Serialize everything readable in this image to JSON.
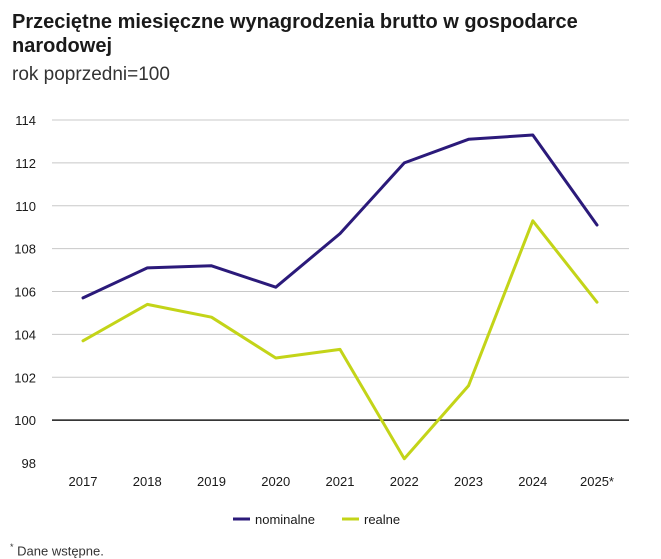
{
  "title": "Przeciętne miesięczne wynagrodzenia brutto w gospodarce narodowej",
  "subtitle": "rok poprzedni=100",
  "footnote": {
    "marker": "*",
    "text": "Dane wstępne."
  },
  "colors": {
    "nominalne": "#2b1a7a",
    "realne": "#c3d418",
    "grid": "#c8c8c8",
    "baseline": "#1a1a1a"
  },
  "chart_data": {
    "type": "line",
    "title": "Przeciętne miesięczne wynagrodzenia brutto w gospodarce narodowej",
    "subtitle": "rok poprzedni=100",
    "categories": [
      "2017",
      "2018",
      "2019",
      "2020",
      "2021",
      "2022",
      "2023",
      "2024",
      "2025*"
    ],
    "ylim": [
      98,
      114
    ],
    "yticks": [
      98,
      100,
      102,
      104,
      106,
      108,
      110,
      112,
      114
    ],
    "baseline": 100,
    "grid": true,
    "legend_position": "bottom",
    "series": [
      {
        "name": "nominalne",
        "values": [
          105.7,
          107.1,
          107.2,
          106.2,
          108.7,
          112.0,
          113.1,
          113.3,
          109.1
        ]
      },
      {
        "name": "realne",
        "values": [
          103.7,
          105.4,
          104.8,
          102.9,
          103.3,
          98.2,
          101.6,
          109.3,
          105.5
        ]
      }
    ]
  }
}
